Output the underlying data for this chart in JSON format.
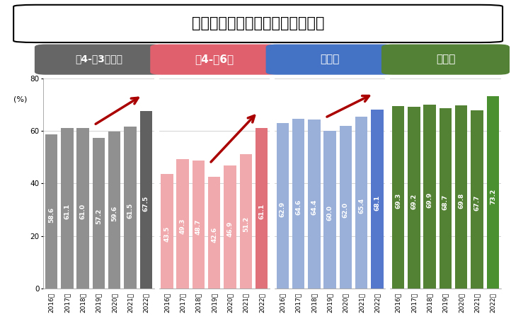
{
  "title": "上手な勉強のしかたがわからない",
  "groups": [
    {
      "label": "小4-高3生全体",
      "label_bg": "#666666",
      "bar_colors": [
        "#909090",
        "#909090",
        "#909090",
        "#909090",
        "#909090",
        "#909090",
        "#606060"
      ],
      "values": [
        58.6,
        61.1,
        61.0,
        57.2,
        59.6,
        61.5,
        67.5
      ],
      "years": [
        "2016年",
        "2017年",
        "2018年",
        "2019年",
        "2020年",
        "2021年",
        "2022年"
      ],
      "arrow": true,
      "arrow_from_idx": 3,
      "arrow_to_idx": 6
    },
    {
      "label": "小4-小6生",
      "label_bg": "#e0606e",
      "bar_colors": [
        "#f0aaae",
        "#f0aaae",
        "#f0aaae",
        "#f0aaae",
        "#f0aaae",
        "#f0aaae",
        "#e0707a"
      ],
      "values": [
        43.5,
        49.3,
        48.7,
        42.6,
        46.9,
        51.2,
        61.1
      ],
      "years": [
        "2016年",
        "2017年",
        "2018年",
        "2019年",
        "2020年",
        "2021年",
        "2022年"
      ],
      "arrow": true,
      "arrow_from_idx": 3,
      "arrow_to_idx": 6
    },
    {
      "label": "中学生",
      "label_bg": "#4472c4",
      "bar_colors": [
        "#9ab0d8",
        "#9ab0d8",
        "#9ab0d8",
        "#9ab0d8",
        "#9ab0d8",
        "#9ab0d8",
        "#5577cc"
      ],
      "values": [
        62.9,
        64.6,
        64.4,
        60.0,
        62.0,
        65.4,
        68.1
      ],
      "years": [
        "2016年",
        "2017年",
        "2018年",
        "2019年",
        "2020年",
        "2021年",
        "2022年"
      ],
      "arrow": true,
      "arrow_from_idx": 3,
      "arrow_to_idx": 6
    },
    {
      "label": "高校生",
      "label_bg": "#538135",
      "bar_colors": [
        "#548235",
        "#548235",
        "#548235",
        "#548235",
        "#548235",
        "#548235",
        "#4a9030"
      ],
      "values": [
        69.3,
        69.2,
        69.9,
        68.7,
        69.8,
        67.7,
        73.2
      ],
      "years": [
        "2016年",
        "2017年",
        "2018年",
        "2019年",
        "2020年",
        "2021年",
        "2022年"
      ],
      "arrow": false
    }
  ],
  "ylim": [
    0,
    80
  ],
  "yticks": [
    0,
    20,
    40,
    60,
    80
  ],
  "ylabel": "(%)",
  "bg_color": "#ffffff",
  "grid_color": "#cccccc",
  "arrow_color": "#aa0000"
}
